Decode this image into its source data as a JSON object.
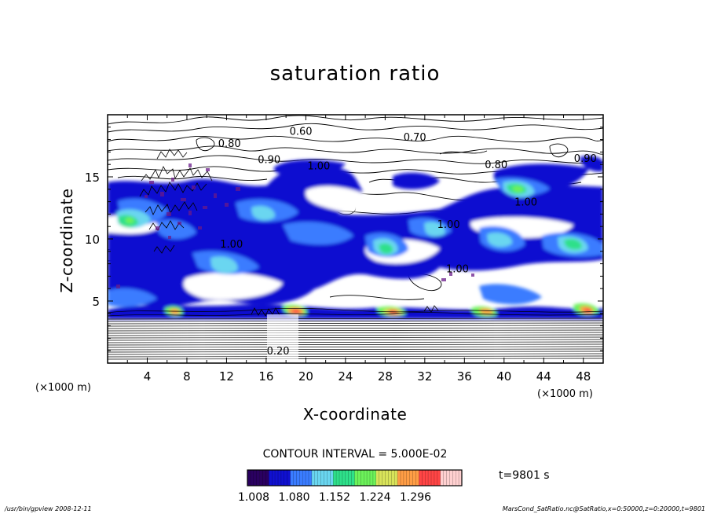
{
  "chart_data": {
    "type": "heatmap",
    "title": "saturation ratio",
    "xlabel": "X-coordinate",
    "ylabel": "Z-coordinate",
    "x_unit": "(×1000 m)",
    "y_unit": "(×1000 m)",
    "xlim": [
      0,
      50
    ],
    "ylim": [
      0,
      20
    ],
    "x_ticks": [
      "4",
      "8",
      "12",
      "16",
      "20",
      "24",
      "28",
      "32",
      "36",
      "40",
      "44",
      "48"
    ],
    "y_ticks": [
      "5",
      "10",
      "15"
    ],
    "contour_interval_text": "CONTOUR INTERVAL = 5.000E-02",
    "contour_labels": [
      {
        "text": "0.60",
        "x": 19.5,
        "z": 18.4
      },
      {
        "text": "0.70",
        "x": 31.0,
        "z": 17.9
      },
      {
        "text": "0.80",
        "x": 12.3,
        "z": 17.4
      },
      {
        "text": "0.80",
        "x": 39.2,
        "z": 15.7
      },
      {
        "text": "0.90",
        "x": 16.3,
        "z": 16.1
      },
      {
        "text": "1.00",
        "x": 21.3,
        "z": 15.6
      },
      {
        "text": "0.90",
        "x": 48.2,
        "z": 16.2
      },
      {
        "text": "1.00",
        "x": 42.2,
        "z": 12.7
      },
      {
        "text": "1.00",
        "x": 34.4,
        "z": 10.9
      },
      {
        "text": "1.00",
        "x": 12.5,
        "z": 9.3
      },
      {
        "text": "1.00",
        "x": 35.3,
        "z": 7.3
      },
      {
        "text": "0.20",
        "x": 17.2,
        "z": 0.7
      }
    ],
    "colorbar": {
      "ticks": [
        "1.008",
        "1.080",
        "1.152",
        "1.224",
        "1.296"
      ],
      "colors": [
        "#2a0060",
        "#1010d0",
        "#3a7cff",
        "#6ad6f0",
        "#2ee08a",
        "#6cf25a",
        "#d8e35a",
        "#ff9d45",
        "#ff4545",
        "#ffd0d0"
      ]
    },
    "time_label": "t=9801 s"
  },
  "footer": {
    "left": "/usr/bin/gpview   2008-12-11",
    "right": "MarsCond_SatRatio.nc@SatRatio,x=0:50000,z=0:20000,t=9801"
  }
}
